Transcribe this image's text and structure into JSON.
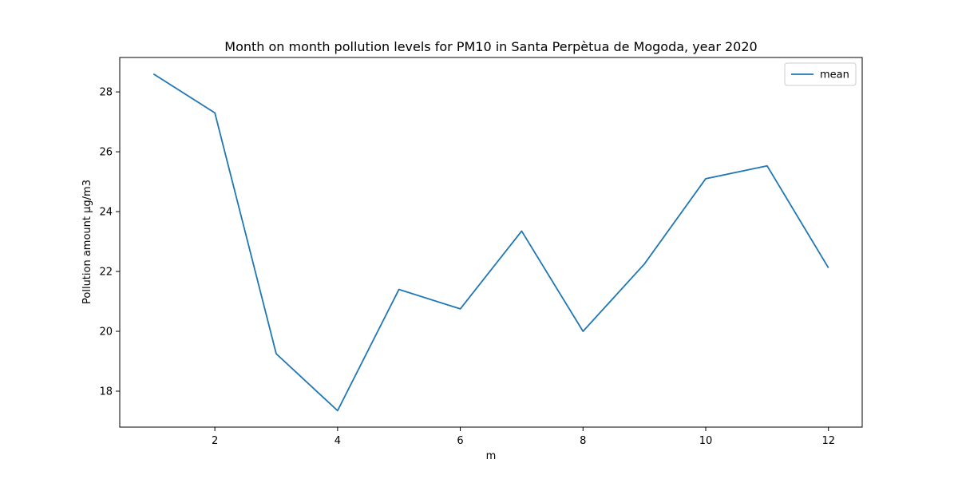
{
  "chart_data": {
    "type": "line",
    "title": "Month on month pollution levels for PM10 in Santa Perpètua de Mogoda, year 2020",
    "xlabel": "m",
    "ylabel": "Pollution amount µg/m3",
    "x": [
      1,
      2,
      3,
      4,
      5,
      6,
      7,
      8,
      9,
      10,
      11,
      12
    ],
    "series": [
      {
        "name": "mean",
        "color": "#1f77b4",
        "values": [
          28.6,
          27.3,
          19.25,
          17.35,
          21.4,
          20.75,
          23.35,
          20.0,
          22.25,
          25.1,
          25.53,
          22.12
        ]
      }
    ],
    "xlim": [
      0.45,
      12.55
    ],
    "ylim": [
      16.8,
      29.15
    ],
    "xticks": [
      2,
      4,
      6,
      8,
      10,
      12
    ],
    "yticks": [
      18,
      20,
      22,
      24,
      26,
      28
    ],
    "grid": false,
    "legend_position": "top-right"
  }
}
